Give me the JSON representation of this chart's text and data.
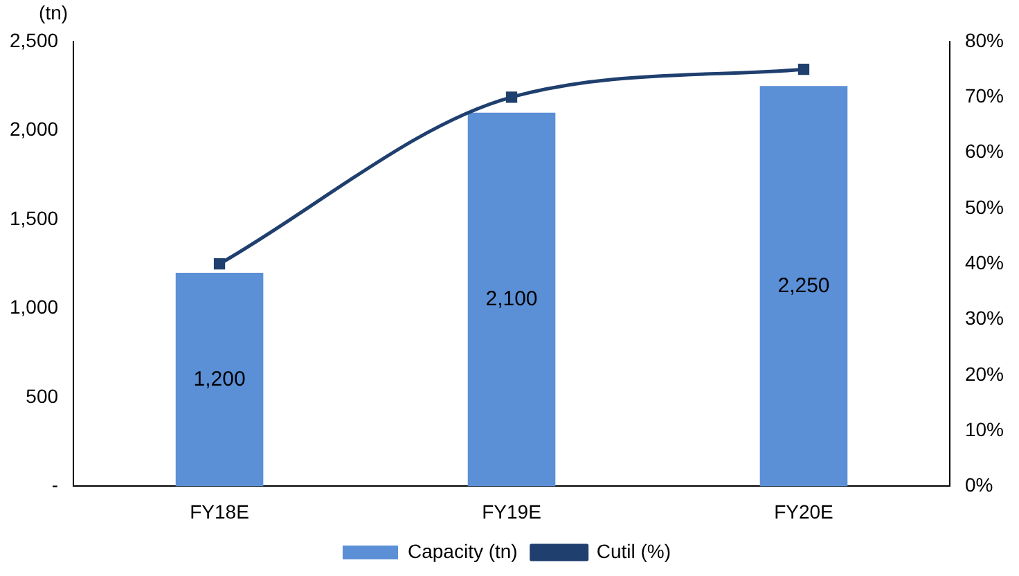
{
  "chart_data": {
    "type": "bar",
    "ylabel": "(tn)",
    "categories": [
      "FY18E",
      "FY19E",
      "FY20E"
    ],
    "series": [
      {
        "name": "Capacity (tn)",
        "color": "#5b8fd6",
        "values": [
          1200,
          2100,
          2250
        ],
        "value_labels": [
          "1,200",
          "2,100",
          "2,250"
        ]
      },
      {
        "name": "Cutil (%)",
        "type": "line",
        "axis": "y2",
        "color": "#1f3f6e",
        "values": [
          40,
          70,
          75
        ],
        "marker": "square",
        "line_style": "solid"
      }
    ],
    "ylim": [
      0,
      2500
    ],
    "yticks": [
      {
        "value": 0,
        "label": "-"
      },
      {
        "value": 500,
        "label": "500"
      },
      {
        "value": 1000,
        "label": "1,000"
      },
      {
        "value": 1500,
        "label": "1,500"
      },
      {
        "value": 2000,
        "label": "2,000"
      },
      {
        "value": 2500,
        "label": "2,500"
      }
    ],
    "y2lim": [
      0,
      80
    ],
    "y2ticks": [
      {
        "value": 0,
        "label": "0%"
      },
      {
        "value": 10,
        "label": "10%"
      },
      {
        "value": 20,
        "label": "20%"
      },
      {
        "value": 30,
        "label": "30%"
      },
      {
        "value": 40,
        "label": "40%"
      },
      {
        "value": 50,
        "label": "50%"
      },
      {
        "value": 60,
        "label": "60%"
      },
      {
        "value": 70,
        "label": "70%"
      },
      {
        "value": 80,
        "label": "80%"
      }
    ],
    "grid": false,
    "legend": "bottom"
  }
}
